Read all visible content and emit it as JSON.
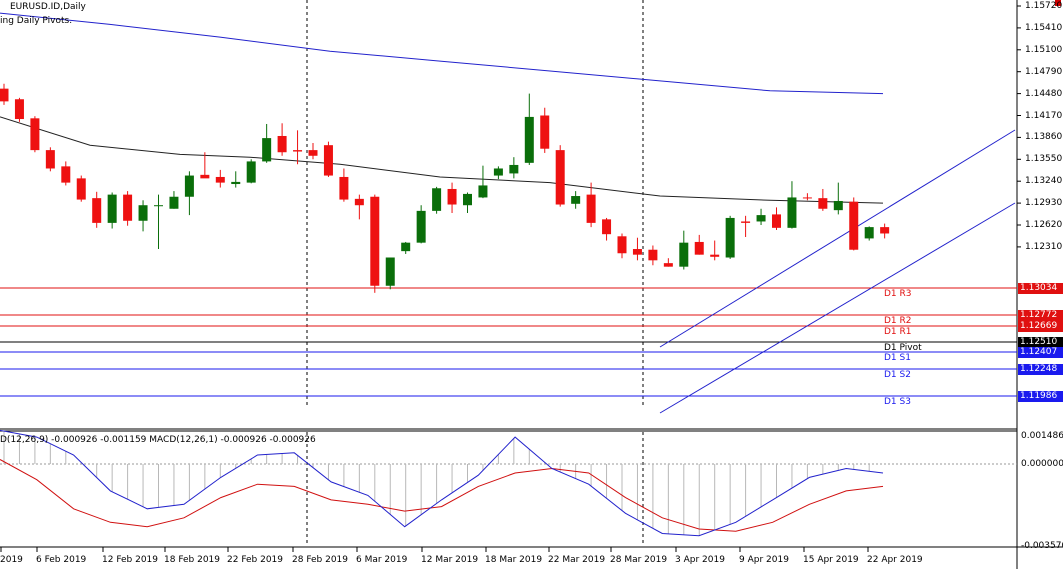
{
  "header": {
    "symbol_title": "EURUSD.ID,Daily",
    "indicator_title": "ing Daily Pivots."
  },
  "macd": {
    "label": "D(12,26,9) -0.000926 -0.001159 MACD(12,26,1) -0.000926 -0.000926",
    "axis_labels": [
      "0.001486",
      "0.000000",
      "-0.003570"
    ]
  },
  "price_axis": {
    "labels": [
      "1.15720",
      "1.15410",
      "1.15100",
      "1.14790",
      "1.14480",
      "1.14170",
      "1.13860",
      "1.13550",
      "1.13240",
      "1.12930",
      "1.12620",
      "1.12310"
    ]
  },
  "pivots": [
    {
      "name": "D1 R3",
      "value": "1.13034",
      "color": "#e01010"
    },
    {
      "name": "D1 R2",
      "value": "1.12772",
      "color": "#e01010"
    },
    {
      "name": "D1 R1",
      "value": "1.12669",
      "color": "#e01010"
    },
    {
      "name": "D1 Pivot",
      "value": "1.12510",
      "color": "#000000"
    },
    {
      "name": "D1 S1",
      "value": "1.12407",
      "color": "#1a1aee"
    },
    {
      "name": "D1 S2",
      "value": "1.12248",
      "color": "#1a1aee"
    },
    {
      "name": "D1 S3",
      "value": "1.11986",
      "color": "#1a1aee"
    }
  ],
  "date_axis": {
    "labels": [
      "2019",
      "6 Feb 2019",
      "12 Feb 2019",
      "18 Feb 2019",
      "22 Feb 2019",
      "28 Feb 2019",
      "6 Mar 2019",
      "12 Mar 2019",
      "18 Mar 2019",
      "22 Mar 2019",
      "28 Mar 2019",
      "3 Apr 2019",
      "9 Apr 2019",
      "15 Apr 2019",
      "22 Apr 2019"
    ]
  },
  "colors": {
    "bull": "#0a6e0a",
    "bear": "#ee1111",
    "ma_long": "#2222cc",
    "ma_short": "#222222",
    "macd_signal": "#d01010",
    "macd_main": "#2222cc"
  },
  "chart_data": {
    "type": "candlestick",
    "candles": [
      {
        "o": 1.1455,
        "h": 1.1462,
        "l": 1.1432,
        "c": 1.1437
      },
      {
        "o": 1.144,
        "h": 1.1442,
        "l": 1.1408,
        "c": 1.1412
      },
      {
        "o": 1.1413,
        "h": 1.1416,
        "l": 1.1365,
        "c": 1.1368
      },
      {
        "o": 1.1368,
        "h": 1.1372,
        "l": 1.1338,
        "c": 1.1342
      },
      {
        "o": 1.1345,
        "h": 1.1352,
        "l": 1.1318,
        "c": 1.1322
      },
      {
        "o": 1.1328,
        "h": 1.1332,
        "l": 1.1295,
        "c": 1.1298
      },
      {
        "o": 1.13,
        "h": 1.1309,
        "l": 1.1258,
        "c": 1.1265
      },
      {
        "o": 1.1265,
        "h": 1.1308,
        "l": 1.1257,
        "c": 1.1305
      },
      {
        "o": 1.1305,
        "h": 1.131,
        "l": 1.1261,
        "c": 1.1268
      },
      {
        "o": 1.1268,
        "h": 1.1297,
        "l": 1.1253,
        "c": 1.129
      },
      {
        "o": 1.129,
        "h": 1.1305,
        "l": 1.1228,
        "c": 1.129
      },
      {
        "o": 1.1285,
        "h": 1.131,
        "l": 1.1285,
        "c": 1.1302
      },
      {
        "o": 1.1302,
        "h": 1.1338,
        "l": 1.1276,
        "c": 1.1332
      },
      {
        "o": 1.1333,
        "h": 1.1365,
        "l": 1.133,
        "c": 1.1328
      },
      {
        "o": 1.133,
        "h": 1.134,
        "l": 1.1315,
        "c": 1.1322
      },
      {
        "o": 1.132,
        "h": 1.1338,
        "l": 1.1315,
        "c": 1.1323
      },
      {
        "o": 1.1322,
        "h": 1.1355,
        "l": 1.1321,
        "c": 1.1352
      },
      {
        "o": 1.1352,
        "h": 1.1405,
        "l": 1.135,
        "c": 1.1385
      },
      {
        "o": 1.1388,
        "h": 1.1406,
        "l": 1.136,
        "c": 1.1365
      },
      {
        "o": 1.1368,
        "h": 1.1396,
        "l": 1.1348,
        "c": 1.1366
      },
      {
        "o": 1.1368,
        "h": 1.1378,
        "l": 1.1355,
        "c": 1.136
      },
      {
        "o": 1.1375,
        "h": 1.138,
        "l": 1.133,
        "c": 1.1332
      },
      {
        "o": 1.133,
        "h": 1.1342,
        "l": 1.1295,
        "c": 1.1298
      },
      {
        "o": 1.1299,
        "h": 1.1305,
        "l": 1.127,
        "c": 1.129
      },
      {
        "o": 1.1302,
        "h": 1.1305,
        "l": 1.1166,
        "c": 1.1176
      },
      {
        "o": 1.1176,
        "h": 1.1215,
        "l": 1.1171,
        "c": 1.1216
      },
      {
        "o": 1.1225,
        "h": 1.1238,
        "l": 1.1221,
        "c": 1.1237
      },
      {
        "o": 1.1237,
        "h": 1.129,
        "l": 1.1236,
        "c": 1.1282
      },
      {
        "o": 1.1282,
        "h": 1.1316,
        "l": 1.1278,
        "c": 1.1314
      },
      {
        "o": 1.1313,
        "h": 1.1322,
        "l": 1.1279,
        "c": 1.1291
      },
      {
        "o": 1.129,
        "h": 1.1308,
        "l": 1.1279,
        "c": 1.1306
      },
      {
        "o": 1.1301,
        "h": 1.1346,
        "l": 1.13,
        "c": 1.1318
      },
      {
        "o": 1.1332,
        "h": 1.1345,
        "l": 1.1327,
        "c": 1.1342
      },
      {
        "o": 1.1335,
        "h": 1.1358,
        "l": 1.1328,
        "c": 1.1347
      },
      {
        "o": 1.135,
        "h": 1.1448,
        "l": 1.1347,
        "c": 1.1415
      },
      {
        "o": 1.1417,
        "h": 1.1428,
        "l": 1.1364,
        "c": 1.137
      },
      {
        "o": 1.1368,
        "h": 1.1375,
        "l": 1.1288,
        "c": 1.1291
      },
      {
        "o": 1.1292,
        "h": 1.131,
        "l": 1.1285,
        "c": 1.1303
      },
      {
        "o": 1.1305,
        "h": 1.1322,
        "l": 1.1259,
        "c": 1.1265
      },
      {
        "o": 1.127,
        "h": 1.1272,
        "l": 1.124,
        "c": 1.1249
      },
      {
        "o": 1.1246,
        "h": 1.125,
        "l": 1.1215,
        "c": 1.1222
      },
      {
        "o": 1.1228,
        "h": 1.1244,
        "l": 1.1212,
        "c": 1.122
      },
      {
        "o": 1.1227,
        "h": 1.1233,
        "l": 1.1205,
        "c": 1.1212
      },
      {
        "o": 1.1208,
        "h": 1.1215,
        "l": 1.1203,
        "c": 1.1203
      },
      {
        "o": 1.1203,
        "h": 1.1254,
        "l": 1.1199,
        "c": 1.1237
      },
      {
        "o": 1.1238,
        "h": 1.1248,
        "l": 1.122,
        "c": 1.122
      },
      {
        "o": 1.122,
        "h": 1.124,
        "l": 1.1212,
        "c": 1.1217
      },
      {
        "o": 1.1216,
        "h": 1.1275,
        "l": 1.1214,
        "c": 1.1272
      },
      {
        "o": 1.1267,
        "h": 1.1275,
        "l": 1.1245,
        "c": 1.1265
      },
      {
        "o": 1.1267,
        "h": 1.1285,
        "l": 1.1262,
        "c": 1.1276
      },
      {
        "o": 1.1277,
        "h": 1.1287,
        "l": 1.1255,
        "c": 1.1258
      },
      {
        "o": 1.1258,
        "h": 1.1324,
        "l": 1.1257,
        "c": 1.1301
      },
      {
        "o": 1.1301,
        "h": 1.1307,
        "l": 1.1297,
        "c": 1.13
      },
      {
        "o": 1.13,
        "h": 1.1313,
        "l": 1.1282,
        "c": 1.1285
      },
      {
        "o": 1.1283,
        "h": 1.1322,
        "l": 1.1277,
        "c": 1.1296
      },
      {
        "o": 1.1295,
        "h": 1.1301,
        "l": 1.1226,
        "c": 1.1227
      },
      {
        "o": 1.1243,
        "h": 1.126,
        "l": 1.124,
        "c": 1.1259
      },
      {
        "o": 1.1259,
        "h": 1.1264,
        "l": 1.1243,
        "c": 1.125
      }
    ],
    "ma_long": [
      1.1562,
      1.1546,
      1.1528,
      1.1508,
      1.1494,
      1.148,
      1.1466,
      1.1452,
      1.1448
    ],
    "ma_short": [
      1.1415,
      1.1375,
      1.1362,
      1.1358,
      1.1348,
      1.133,
      1.1322,
      1.1303,
      1.1297,
      1.1293
    ],
    "macd_main": [
      0.0015,
      0.0012,
      0.0004,
      -0.0012,
      -0.002,
      -0.0018,
      -0.0006,
      0.0004,
      0.0005,
      -0.0008,
      -0.0014,
      -0.0028,
      -0.0016,
      -0.0005,
      0.0012,
      -0.0002,
      -0.0009,
      -0.0022,
      -0.0031,
      -0.0032,
      -0.0026,
      -0.0016,
      -0.0006,
      -0.0002,
      -0.0004
    ],
    "macd_signal": [
      0.0002,
      -0.0007,
      -0.002,
      -0.0026,
      -0.0028,
      -0.0024,
      -0.0015,
      -0.0009,
      -0.001,
      -0.0016,
      -0.0018,
      -0.0021,
      -0.0019,
      -0.001,
      -0.0004,
      -0.0002,
      -0.0004,
      -0.0015,
      -0.0024,
      -0.0029,
      -0.003,
      -0.0026,
      -0.0018,
      -0.0012,
      -0.001
    ],
    "ylim": [
      1.1166,
      1.1572
    ]
  }
}
